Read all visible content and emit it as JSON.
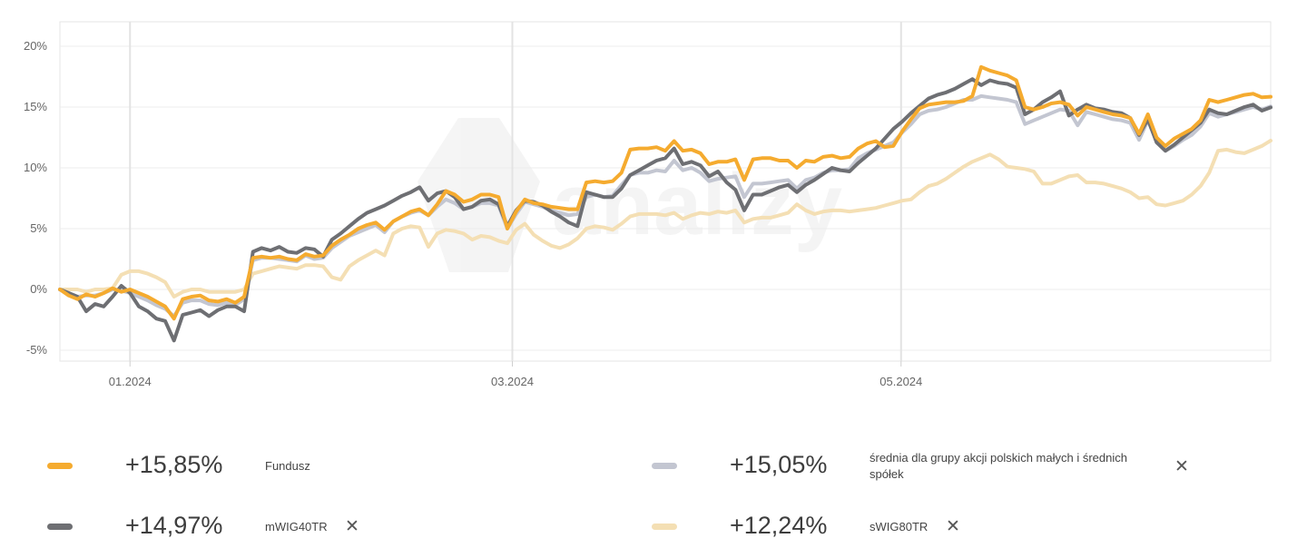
{
  "chart_data": {
    "type": "line",
    "x_ticks": [
      "01.2024",
      "03.2024",
      "05.2024"
    ],
    "y_ticks": [
      "20%",
      "15%",
      "10%",
      "5%",
      "0%",
      "-5%"
    ],
    "y_tick_values": [
      20,
      15,
      10,
      5,
      0,
      -5
    ],
    "ylim": [
      -6,
      22
    ],
    "x_range": [
      "2023-12-21",
      "2024-06-28"
    ],
    "grid": true,
    "watermark": "analizy",
    "series": [
      {
        "name": "Fundusz",
        "color": "#f5ab2f",
        "values": [
          0.0,
          -0.5,
          -0.8,
          -0.4,
          -0.6,
          -0.3,
          0.1,
          -0.2,
          0.0,
          -0.3,
          -0.6,
          -1.0,
          -1.4,
          -2.4,
          -0.8,
          -0.6,
          -0.5,
          -0.9,
          -1.0,
          -0.8,
          -1.1,
          -0.6,
          2.6,
          2.7,
          2.6,
          2.7,
          2.5,
          2.4,
          2.9,
          2.7,
          2.8,
          3.6,
          4.1,
          4.5,
          5.0,
          5.3,
          5.5,
          4.9,
          5.6,
          6.0,
          6.4,
          6.6,
          6.1,
          7.0,
          8.1,
          7.8,
          7.2,
          7.4,
          7.8,
          7.8,
          7.6,
          5.0,
          6.4,
          7.4,
          7.1,
          7.0,
          6.8,
          6.7,
          6.6,
          6.6,
          8.8,
          8.9,
          8.8,
          8.9,
          9.6,
          11.5,
          11.6,
          11.6,
          11.7,
          11.4,
          12.2,
          11.4,
          11.5,
          11.2,
          10.3,
          10.5,
          10.5,
          10.7,
          9.0,
          10.7,
          10.8,
          10.8,
          10.6,
          10.6,
          10.0,
          10.6,
          10.5,
          10.9,
          11.0,
          10.8,
          10.9,
          11.6,
          12.0,
          12.2,
          11.7,
          11.8,
          13.0,
          14.0,
          14.9,
          15.2,
          15.3,
          15.4,
          15.4,
          15.5,
          15.9,
          18.3,
          18.0,
          17.8,
          17.6,
          17.2,
          15.0,
          14.8,
          15.0,
          15.3,
          15.4,
          15.2,
          14.3,
          15.0,
          14.8,
          14.6,
          14.4,
          14.3,
          14.1,
          12.8,
          14.4,
          12.5,
          11.8,
          12.4,
          12.8,
          13.2,
          13.9,
          15.6,
          15.4,
          15.6,
          15.8,
          16.0,
          16.1,
          15.8,
          15.85
        ]
      },
      {
        "name": "średnia dla grupy akcji polskich małych i średnich spółek",
        "color": "#c3c6d1",
        "values": [
          0.0,
          -0.3,
          -0.6,
          -0.5,
          -0.5,
          -0.3,
          0.0,
          -0.1,
          -0.3,
          -0.6,
          -0.9,
          -1.3,
          -1.6,
          -2.2,
          -1.1,
          -0.9,
          -0.9,
          -1.2,
          -1.3,
          -1.1,
          -1.3,
          -0.8,
          2.4,
          2.6,
          2.6,
          2.5,
          2.4,
          2.3,
          2.8,
          2.5,
          2.6,
          3.4,
          3.9,
          4.4,
          4.7,
          5.0,
          5.3,
          4.7,
          5.6,
          6.0,
          6.3,
          6.5,
          6.1,
          6.8,
          7.4,
          7.1,
          6.6,
          6.8,
          7.1,
          7.1,
          6.9,
          5.0,
          6.2,
          7.2,
          7.0,
          6.8,
          6.5,
          6.3,
          6.1,
          6.2,
          7.6,
          7.8,
          7.6,
          7.7,
          8.6,
          9.4,
          9.6,
          9.6,
          9.8,
          9.7,
          10.6,
          9.8,
          10.0,
          9.6,
          8.9,
          9.1,
          9.2,
          9.3,
          7.6,
          8.7,
          8.7,
          8.8,
          8.9,
          9.0,
          8.3,
          9.0,
          9.2,
          9.6,
          9.8,
          9.8,
          9.9,
          10.8,
          11.2,
          11.5,
          11.8,
          12.1,
          12.9,
          13.6,
          14.4,
          14.7,
          14.8,
          15.0,
          15.3,
          15.6,
          15.6,
          15.9,
          15.8,
          15.7,
          15.6,
          15.4,
          13.6,
          13.9,
          14.2,
          14.5,
          14.8,
          14.7,
          13.5,
          14.6,
          14.4,
          14.2,
          14.0,
          13.9,
          13.7,
          12.3,
          13.9,
          12.2,
          11.4,
          11.8,
          12.3,
          12.7,
          13.4,
          14.5,
          14.2,
          14.4,
          14.6,
          14.8,
          15.0,
          14.8,
          15.05
        ]
      },
      {
        "name": "mWIG40TR",
        "color": "#6e6f73",
        "values": [
          0.0,
          -0.3,
          -0.6,
          -1.8,
          -1.2,
          -1.4,
          -0.6,
          0.3,
          -0.3,
          -1.4,
          -1.8,
          -2.4,
          -2.6,
          -4.2,
          -2.1,
          -1.9,
          -1.7,
          -2.2,
          -1.7,
          -1.4,
          -1.4,
          -1.8,
          3.1,
          3.4,
          3.2,
          3.5,
          3.1,
          3.0,
          3.4,
          3.3,
          2.7,
          4.1,
          4.6,
          5.2,
          5.8,
          6.3,
          6.6,
          6.9,
          7.3,
          7.7,
          8.0,
          8.4,
          7.3,
          7.9,
          8.1,
          7.6,
          6.6,
          6.8,
          7.3,
          7.4,
          7.0,
          5.2,
          6.5,
          7.3,
          7.2,
          6.9,
          6.4,
          6.0,
          5.5,
          5.2,
          8.0,
          7.8,
          7.6,
          7.6,
          8.3,
          9.4,
          9.8,
          10.2,
          10.6,
          10.8,
          11.6,
          10.3,
          10.5,
          10.2,
          9.3,
          9.7,
          8.8,
          8.2,
          6.5,
          7.8,
          7.8,
          8.1,
          8.4,
          8.6,
          8.0,
          8.6,
          9.0,
          9.5,
          10.0,
          9.8,
          9.7,
          10.4,
          11.0,
          11.6,
          12.4,
          13.2,
          13.8,
          14.5,
          15.1,
          15.7,
          16.0,
          16.2,
          16.5,
          16.9,
          17.3,
          16.8,
          17.2,
          17.0,
          16.9,
          16.6,
          14.4,
          14.8,
          15.4,
          15.8,
          16.3,
          14.3,
          14.8,
          15.2,
          14.9,
          14.8,
          14.6,
          14.5,
          14.1,
          12.7,
          14.0,
          12.1,
          11.4,
          11.9,
          12.5,
          13.1,
          13.7,
          14.8,
          14.5,
          14.4,
          14.7,
          15.0,
          15.2,
          14.7,
          14.97
        ]
      },
      {
        "name": "sWIG80TR",
        "color": "#f4dfb4",
        "values": [
          0.0,
          0.0,
          0.0,
          -0.2,
          0.0,
          0.0,
          0.1,
          1.2,
          1.5,
          1.5,
          1.3,
          1.0,
          0.6,
          -0.6,
          -0.2,
          0.0,
          0.0,
          -0.2,
          -0.2,
          -0.2,
          -0.2,
          0.0,
          1.3,
          1.5,
          1.7,
          1.9,
          1.8,
          1.7,
          2.0,
          2.0,
          1.9,
          1.0,
          0.8,
          1.9,
          2.4,
          2.8,
          3.2,
          2.8,
          4.6,
          5.0,
          5.2,
          5.1,
          3.5,
          4.6,
          4.9,
          4.8,
          4.6,
          4.1,
          4.4,
          4.3,
          4.0,
          3.8,
          4.9,
          5.4,
          4.5,
          4.0,
          3.6,
          3.4,
          3.7,
          4.2,
          5.0,
          5.2,
          5.1,
          4.9,
          5.4,
          6.0,
          6.2,
          6.2,
          6.2,
          6.1,
          6.3,
          5.8,
          6.1,
          6.3,
          6.2,
          6.4,
          6.3,
          6.5,
          5.5,
          5.8,
          5.9,
          5.9,
          6.1,
          6.3,
          7.0,
          6.5,
          6.2,
          6.4,
          6.5,
          6.5,
          6.4,
          6.5,
          6.6,
          6.7,
          6.9,
          7.1,
          7.3,
          7.4,
          8.0,
          8.5,
          8.7,
          9.1,
          9.6,
          10.1,
          10.5,
          10.8,
          11.1,
          10.7,
          10.1,
          10.0,
          9.9,
          9.7,
          8.7,
          8.7,
          9.0,
          9.3,
          9.4,
          8.8,
          8.8,
          8.7,
          8.5,
          8.3,
          8.0,
          7.5,
          7.6,
          7.0,
          6.9,
          7.1,
          7.3,
          7.8,
          8.5,
          9.6,
          11.4,
          11.5,
          11.3,
          11.2,
          11.5,
          11.8,
          12.24
        ]
      }
    ]
  },
  "legend": [
    {
      "value": "+15,85%",
      "name": "Fundusz",
      "color": "#f5ab2f",
      "removable": false
    },
    {
      "value": "+15,05%",
      "name": "średnia dla grupy akcji polskich małych i średnich spółek",
      "color": "#c3c6d1",
      "removable": true,
      "remove_label": "✕"
    },
    {
      "value": "+14,97%",
      "name": "mWIG40TR",
      "color": "#6e6f73",
      "removable": true,
      "remove_label": "✕"
    },
    {
      "value": "+12,24%",
      "name": "sWIG80TR",
      "color": "#f4dfb4",
      "removable": true,
      "remove_label": "✕"
    }
  ]
}
